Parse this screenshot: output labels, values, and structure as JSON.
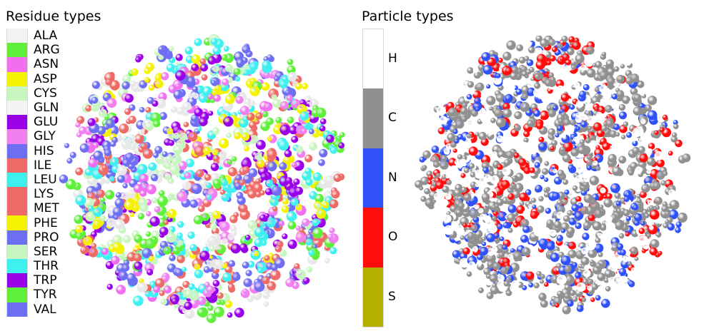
{
  "residue_legend": {
    "title": "Residue types",
    "items": [
      {
        "label": "ALA",
        "color": "#f2f2f2"
      },
      {
        "label": "ARG",
        "color": "#5ef03a"
      },
      {
        "label": "ASN",
        "color": "#f06ef0"
      },
      {
        "label": "ASP",
        "color": "#f5f200"
      },
      {
        "label": "CYS",
        "color": "#c8f5c0"
      },
      {
        "label": "GLN",
        "color": "#f4f4f4"
      },
      {
        "label": "GLU",
        "color": "#9a00e8"
      },
      {
        "label": "GLY",
        "color": "#f080f0"
      },
      {
        "label": "HIS",
        "color": "#6e6ef2"
      },
      {
        "label": "ILE",
        "color": "#ee6a66"
      },
      {
        "label": "LEU",
        "color": "#40f0f0"
      },
      {
        "label": "LYS",
        "color": "#ee6a66"
      },
      {
        "label": "MET",
        "color": "#ee6a66"
      },
      {
        "label": "PHE",
        "color": "#f5f200"
      },
      {
        "label": "PRO",
        "color": "#6e6ef2"
      },
      {
        "label": "SER",
        "color": "#c8f5c0"
      },
      {
        "label": "THR",
        "color": "#40f0f0"
      },
      {
        "label": "TRP",
        "color": "#9a00e8"
      },
      {
        "label": "TYR",
        "color": "#5ef03a"
      },
      {
        "label": "VAL",
        "color": "#6e6ef2"
      }
    ]
  },
  "particle_legend": {
    "title": "Particle types",
    "items": [
      {
        "label": "H",
        "color": "#ffffff"
      },
      {
        "label": "C",
        "color": "#909090"
      },
      {
        "label": "N",
        "color": "#3050f8"
      },
      {
        "label": "O",
        "color": "#ff0d0d"
      },
      {
        "label": "S",
        "color": "#b4b000"
      }
    ]
  }
}
